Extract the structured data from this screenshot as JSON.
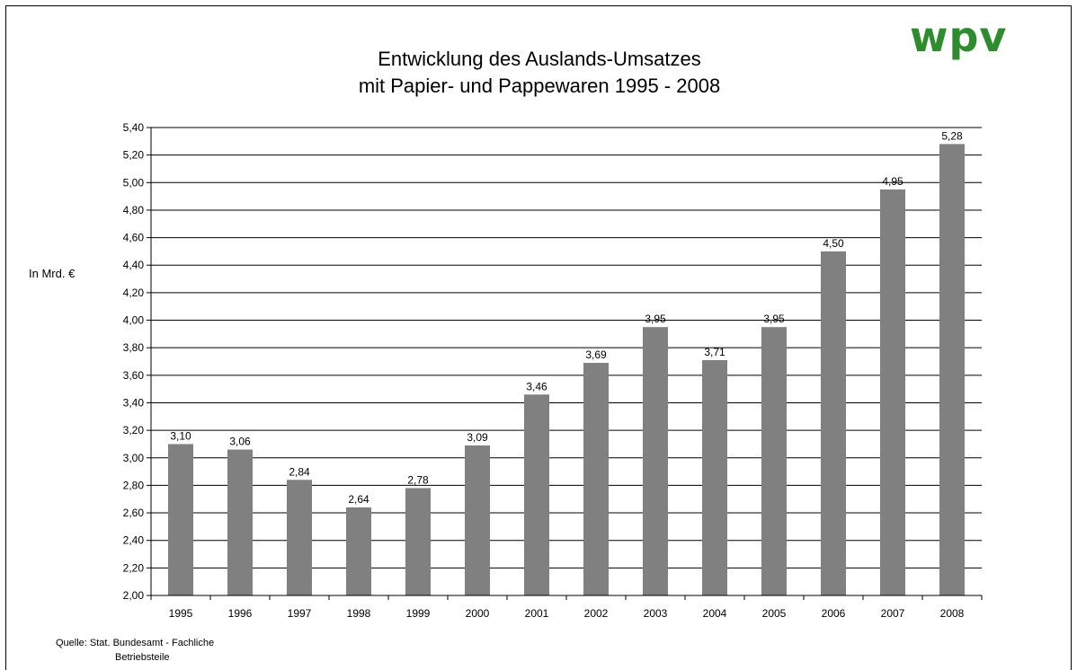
{
  "chart_data": {
    "type": "bar",
    "title_line1": "Entwicklung des Auslands-Umsatzes",
    "title_line2": "mit Papier- und Pappewaren 1995 - 2008",
    "ylabel": "In Mrd. €",
    "xlabel": "",
    "categories": [
      "1995",
      "1996",
      "1997",
      "1998",
      "1999",
      "2000",
      "2001",
      "2002",
      "2003",
      "2004",
      "2005",
      "2006",
      "2007",
      "2008"
    ],
    "values": [
      3.1,
      3.06,
      2.84,
      2.64,
      2.78,
      3.09,
      3.46,
      3.69,
      3.95,
      3.71,
      3.95,
      4.5,
      4.95,
      5.28
    ],
    "value_labels": [
      "3,10",
      "3,06",
      "2,84",
      "2,64",
      "2,78",
      "3,09",
      "3,46",
      "3,69",
      "3,95",
      "3,71",
      "3,95",
      "4,50",
      "4,95",
      "5,28"
    ],
    "ylim": [
      2.0,
      5.4
    ],
    "yticks": [
      "2,00",
      "2,20",
      "2,40",
      "2,60",
      "2,80",
      "3,00",
      "3,20",
      "3,40",
      "3,60",
      "3,80",
      "4,00",
      "4,20",
      "4,40",
      "4,60",
      "4,80",
      "5,00",
      "5,20",
      "5,40"
    ],
    "grid": true,
    "legend": "none",
    "bar_color": "#808080"
  },
  "logo_text": "wpv",
  "source_line1": "Quelle: Stat. Bundesamt - Fachliche",
  "source_line2": "Betriebsteile"
}
